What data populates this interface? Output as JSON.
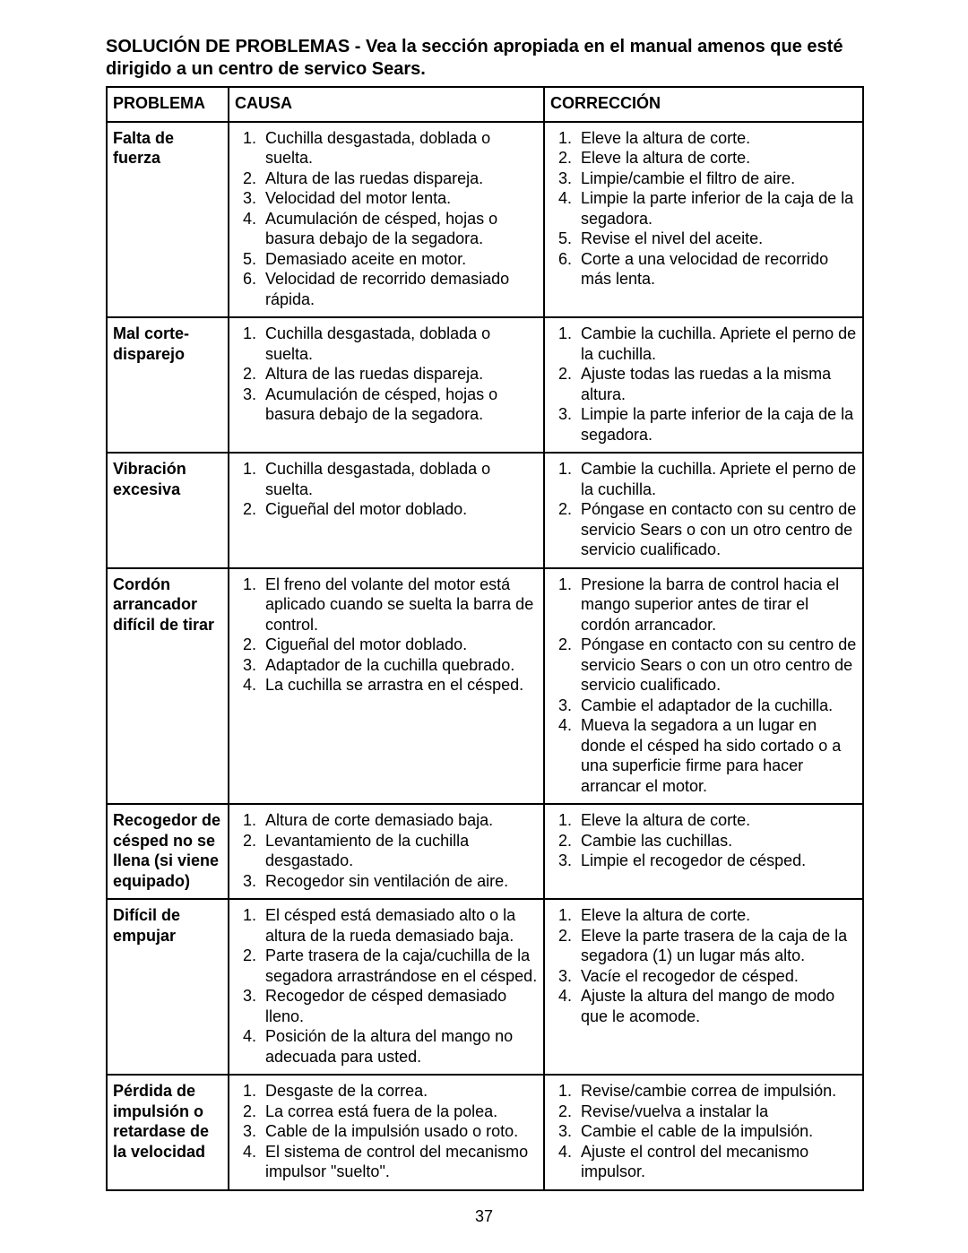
{
  "title": "SOLUCIÓN DE PROBLEMAS - Vea la sección apropiada en el manual amenos que esté dirigido a un centro de servico Sears.",
  "page_number": "37",
  "headers": {
    "problem": "PROBLEMA",
    "cause": "CAUSA",
    "correction": "CORRECCIÓN"
  },
  "rows": [
    {
      "problem": "Falta de fuerza",
      "causes": [
        "Cuchilla desgastada, doblada o suelta.",
        "Altura de las ruedas dispareja.",
        "Velocidad del motor lenta.",
        "Acumulación de césped, hojas o basura debajo de la segadora.",
        "Demasiado aceite en motor.",
        "Velocidad de recorrido demasiado rápida."
      ],
      "corrections": [
        "Eleve la altura de corte.",
        "Eleve la altura de corte.",
        "Limpie/cambie el filtro de aire.",
        "Limpie la parte inferior de la caja de la segadora.",
        "Revise el nivel del aceite.",
        "Corte a una velocidad de recorrido más lenta."
      ]
    },
    {
      "problem": "Mal corte-disparejo",
      "causes": [
        "Cuchilla desgastada, doblada o suelta.",
        "Altura de las ruedas dispareja.",
        "Acumulación de césped, hojas o basura debajo de la segadora."
      ],
      "corrections": [
        "Cambie la cuchilla. Apriete el perno de la cuchilla.",
        "Ajuste todas las ruedas a la misma altura.",
        "Limpie la parte inferior de la caja de la segadora."
      ]
    },
    {
      "problem": "Vibración excesiva",
      "causes": [
        "Cuchilla desgastada, doblada o suelta.",
        "Cigueñal del motor doblado."
      ],
      "corrections": [
        "Cambie la cuchilla. Apriete el perno de la cuchilla.",
        "Póngase en contacto con su centro de servicio Sears o con un otro centro de servicio cualificado."
      ]
    },
    {
      "problem": "Cordón arrancador difícil de tirar",
      "causes": [
        "El freno del volante del motor está aplicado cuando se suelta la barra de control.",
        "Cigueñal del motor doblado.",
        "Adaptador de la cuchilla quebrado.",
        "La cuchilla se arrastra en el césped."
      ],
      "corrections": [
        "Presione la barra de control hacia el mango superior antes de tirar el cordón arrancador.",
        "Póngase en contacto con su centro de servicio Sears o con un otro centro de servicio cualificado.",
        "Cambie el adaptador de la cuchilla.",
        "Mueva la segadora a un lugar en donde el césped ha sido cortado o a una superficie firme para hacer arrancar el motor."
      ]
    },
    {
      "problem": "Recogedor de césped no se llena (si viene equipado)",
      "causes": [
        "Altura de corte demasiado baja.",
        "Levantamiento de la cuchilla desgastado.",
        "Recogedor sin ventilación de aire."
      ],
      "corrections": [
        "Eleve la altura de corte.",
        "Cambie las cuchillas.",
        "Limpie el recogedor de césped."
      ]
    },
    {
      "problem": "Difícil de empujar",
      "causes": [
        "El césped está demasiado alto o la altura de la rueda demasiado baja.",
        "Parte trasera de la caja/cuchilla de la segadora arrastrándose en el césped.",
        "Recogedor de césped demasiado lleno.",
        "Posición de la altura del mango no adecuada para usted."
      ],
      "corrections": [
        "Eleve la altura de corte.",
        "Eleve la parte trasera de la caja de la segadora (1) un lugar más alto.",
        "Vacíe el recogedor de césped.",
        "Ajuste la altura del mango de modo que le acomode."
      ]
    },
    {
      "problem": "Pérdida de impulsión o retardase de la velocidad",
      "causes": [
        "Desgaste de la correa.",
        "La correa está fuera de la polea.",
        "Cable de la impulsión usado o roto.",
        "El sistema de control del mecanismo impulsor \"suelto\"."
      ],
      "corrections": [
        "Revise/cambie correa de impulsión.",
        "Revise/vuelva a instalar la",
        "Cambie  el cable de la impulsión.",
        "Ajuste el control del mecanismo impulsor."
      ]
    }
  ]
}
